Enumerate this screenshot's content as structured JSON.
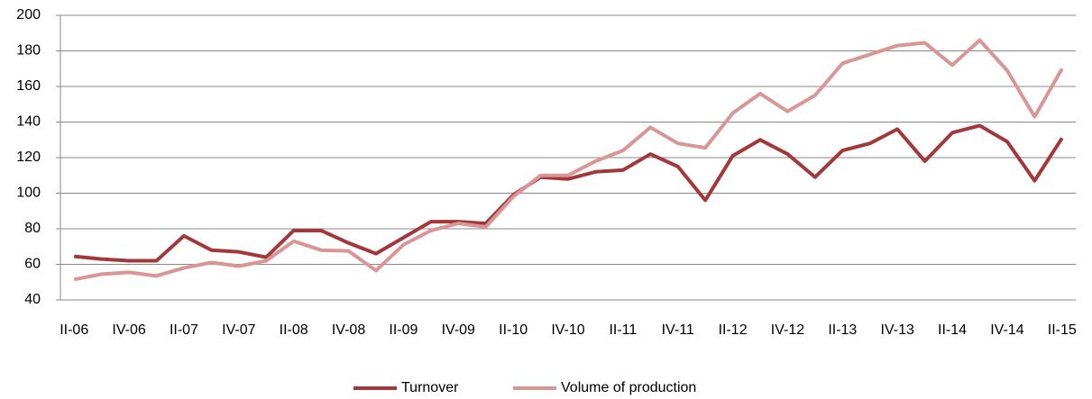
{
  "chart_data": {
    "type": "line",
    "categories": [
      "II-06",
      null,
      "IV-06",
      null,
      "II-07",
      null,
      "IV-07",
      null,
      "II-08",
      null,
      "IV-08",
      null,
      "II-09",
      null,
      "IV-09",
      null,
      "II-10",
      null,
      "IV-10",
      null,
      "II-11",
      null,
      "IV-11",
      null,
      "II-12",
      null,
      "IV-12",
      null,
      "II-13",
      null,
      "IV-13",
      null,
      "II-14",
      null,
      "IV-14",
      null,
      "II-15"
    ],
    "series": [
      {
        "name": "Turnover",
        "color": "#a3383a",
        "values": [
          64.5,
          63,
          62,
          62,
          76,
          68,
          67,
          64,
          79,
          79,
          72,
          66,
          75,
          84,
          84,
          83,
          99,
          109,
          108,
          112,
          113,
          122,
          115,
          96,
          121,
          130,
          122,
          109,
          124,
          128,
          136,
          118,
          134,
          138,
          129,
          107,
          131
        ]
      },
      {
        "name": "Volume of production",
        "color": "#d99694",
        "values": [
          51.5,
          54.5,
          55.5,
          53.5,
          58,
          61,
          59,
          62,
          73,
          68,
          67.5,
          56.5,
          71,
          79,
          83,
          81,
          98,
          110,
          110,
          118,
          124,
          137,
          128,
          125.5,
          145,
          156,
          146,
          155,
          173,
          178,
          183,
          184.5,
          172,
          186,
          169,
          143,
          170
        ]
      }
    ],
    "ylim": [
      40,
      200
    ],
    "yticks": [
      40,
      60,
      80,
      100,
      120,
      140,
      160,
      180,
      200
    ],
    "grid": true,
    "legend": "bottom"
  }
}
